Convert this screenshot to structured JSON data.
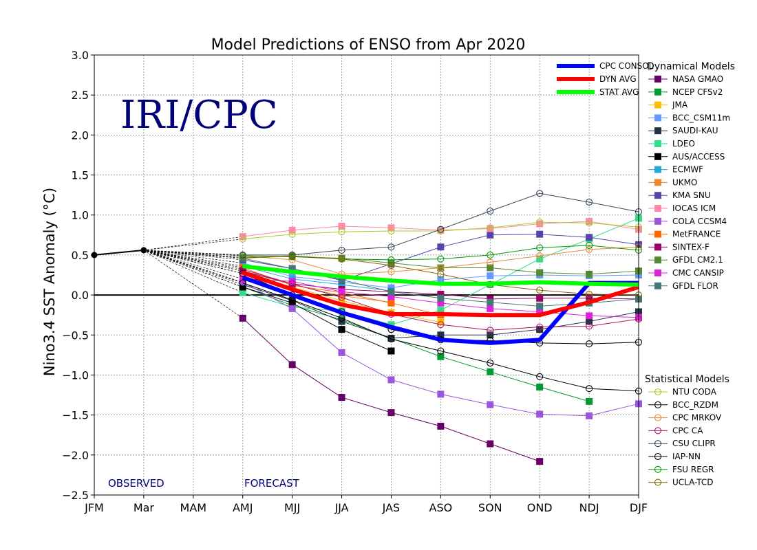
{
  "chart_data": {
    "type": "line",
    "title": "Model Predictions of ENSO from Apr 2020",
    "ylabel": "Nino3.4 SST Anomaly (°C)",
    "xlabel": "",
    "categories": [
      "JFM",
      "Mar",
      "MAM",
      "AMJ",
      "MJJ",
      "JJA",
      "JAS",
      "ASO",
      "SON",
      "OND",
      "NDJ",
      "DJF"
    ],
    "ylim": [
      -2.5,
      3.0
    ],
    "yticks": [
      -2.5,
      -2.0,
      -1.5,
      -1.0,
      -0.5,
      0.0,
      0.5,
      1.0,
      1.5,
      2.0,
      2.5,
      3.0
    ],
    "ytick_labels": [
      "−2.5",
      "−2.0",
      "−1.5",
      "−1.0",
      "−0.5",
      "0.0",
      "0.5",
      "1.0",
      "1.5",
      "2.0",
      "2.5",
      "3.0"
    ],
    "grid": true,
    "watermark": "IRI/CPC",
    "observed_label": "OBSERVED",
    "forecast_label": "FORECAST",
    "observed": {
      "x": [
        "JFM",
        "Mar"
      ],
      "values": [
        0.5,
        0.56
      ],
      "color": "#000000"
    },
    "averages": [
      {
        "name": "CPC CONSOL",
        "color": "#0000ff",
        "values": [
          null,
          null,
          null,
          0.22,
          0.0,
          -0.22,
          -0.4,
          -0.56,
          -0.6,
          -0.56,
          0.15,
          0.15
        ]
      },
      {
        "name": "DYN AVG",
        "color": "#ff0000",
        "values": [
          null,
          null,
          null,
          0.28,
          0.07,
          -0.12,
          -0.24,
          -0.24,
          -0.25,
          -0.25,
          -0.09,
          0.1
        ]
      },
      {
        "name": "STAT AVG",
        "color": "#00ff00",
        "values": [
          null,
          null,
          null,
          0.36,
          0.29,
          0.23,
          0.18,
          0.14,
          0.14,
          0.16,
          0.14,
          0.13
        ]
      }
    ],
    "legend_dynamical_title": "Dynamical Models",
    "legend_statistical_title": "Statistical Models",
    "dynamical": [
      {
        "name": "NASA GMAO",
        "color": "#660066",
        "values": [
          null,
          null,
          null,
          -0.29,
          -0.87,
          -1.28,
          -1.47,
          -1.64,
          -1.86,
          -2.08,
          null,
          null
        ]
      },
      {
        "name": "NCEP CFSv2",
        "color": "#009933",
        "values": [
          null,
          null,
          null,
          0.1,
          -0.13,
          -0.31,
          -0.54,
          -0.77,
          -0.96,
          -1.15,
          -1.33,
          null
        ]
      },
      {
        "name": "JMA",
        "color": "#ffbb00",
        "values": [
          null,
          null,
          null,
          0.27,
          0.1,
          -0.07,
          -0.22,
          -0.34,
          null,
          null,
          null,
          null
        ]
      },
      {
        "name": "BCC_CSM11m",
        "color": "#6699ff",
        "values": [
          null,
          null,
          null,
          0.4,
          0.23,
          0.16,
          0.09,
          0.19,
          0.24,
          0.25,
          0.24,
          0.25
        ]
      },
      {
        "name": "SAUDI-KAU",
        "color": "#223344",
        "values": [
          null,
          null,
          null,
          0.13,
          -0.07,
          -0.33,
          -0.54,
          -0.5,
          -0.5,
          -0.43,
          -0.33,
          -0.21
        ]
      },
      {
        "name": "LDEO",
        "color": "#33dd88",
        "values": [
          null,
          null,
          null,
          0.03,
          -0.15,
          -0.2,
          -0.37,
          -0.19,
          0.13,
          0.45,
          0.7,
          0.96
        ]
      },
      {
        "name": "AUS/ACCESS",
        "color": "#000000",
        "values": [
          null,
          null,
          null,
          0.1,
          -0.1,
          -0.43,
          -0.7,
          null,
          null,
          null,
          null,
          null
        ]
      },
      {
        "name": "ECMWF",
        "color": "#22aadd",
        "values": [
          null,
          null,
          null,
          0.36,
          0.2,
          0.13,
          0.05,
          null,
          null,
          null,
          null,
          null
        ]
      },
      {
        "name": "UKMO",
        "color": "#ee8833",
        "values": [
          null,
          null,
          null,
          0.3,
          0.13,
          -0.01,
          -0.09,
          null,
          null,
          null,
          null,
          null
        ]
      },
      {
        "name": "KMA SNU",
        "color": "#5544aa",
        "values": [
          null,
          null,
          null,
          0.44,
          0.33,
          0.18,
          0.39,
          0.6,
          0.75,
          0.76,
          0.72,
          0.63
        ]
      },
      {
        "name": "IOCAS ICM",
        "color": "#ff88aa",
        "values": [
          null,
          null,
          null,
          0.73,
          0.81,
          0.86,
          0.84,
          0.81,
          0.83,
          0.89,
          0.92,
          0.82
        ]
      },
      {
        "name": "COLA CCSM4",
        "color": "#9955dd",
        "values": [
          null,
          null,
          null,
          0.16,
          -0.17,
          -0.72,
          -1.06,
          -1.24,
          -1.37,
          -1.49,
          -1.51,
          -1.36
        ]
      },
      {
        "name": "MetFRANCE",
        "color": "#ff6600",
        "values": [
          null,
          null,
          null,
          0.34,
          0.12,
          0.03,
          -0.1,
          -0.25,
          null,
          null,
          null,
          null
        ]
      },
      {
        "name": "SINTEX-F",
        "color": "#990066",
        "values": [
          null,
          null,
          null,
          0.3,
          0.14,
          0.07,
          0.04,
          0.01,
          -0.05,
          -0.04,
          -0.04,
          -0.05
        ]
      },
      {
        "name": "GFDL CM2.1",
        "color": "#558833",
        "values": [
          null,
          null,
          null,
          0.47,
          0.48,
          0.46,
          0.4,
          0.34,
          0.34,
          0.28,
          0.26,
          0.3
        ]
      },
      {
        "name": "CMC CANSIP",
        "color": "#dd22dd",
        "values": [
          null,
          null,
          null,
          0.2,
          0.17,
          0.04,
          -0.02,
          -0.1,
          -0.17,
          -0.21,
          -0.26,
          -0.28
        ]
      },
      {
        "name": "GFDL FLOR",
        "color": "#447777",
        "values": [
          null,
          null,
          null,
          0.46,
          0.33,
          0.19,
          0.04,
          -0.04,
          -0.09,
          -0.14,
          -0.1,
          -0.05
        ]
      }
    ],
    "statistical": [
      {
        "name": "NTU CODA",
        "color": "#aacc22",
        "values": [
          null,
          null,
          null,
          0.7,
          0.76,
          0.79,
          0.8,
          0.8,
          0.84,
          0.91,
          0.9,
          0.85
        ]
      },
      {
        "name": "BCC_RZDM",
        "color": "#000000",
        "values": [
          null,
          null,
          null,
          0.15,
          -0.06,
          -0.29,
          -0.55,
          -0.7,
          -0.85,
          -1.02,
          -1.17,
          -1.2
        ]
      },
      {
        "name": "CPC MRKOV",
        "color": "#ee8833",
        "values": [
          null,
          null,
          null,
          0.49,
          0.44,
          0.26,
          0.29,
          0.34,
          0.41,
          0.49,
          0.57,
          0.6
        ]
      },
      {
        "name": "CPC CA",
        "color": "#aa1166",
        "values": [
          null,
          null,
          null,
          0.32,
          0.14,
          -0.03,
          -0.24,
          -0.37,
          -0.44,
          -0.4,
          -0.39,
          -0.3
        ]
      },
      {
        "name": "CSU CLIPR",
        "color": "#334455",
        "values": [
          null,
          null,
          null,
          0.5,
          0.5,
          0.56,
          0.6,
          0.82,
          1.05,
          1.27,
          1.16,
          1.04
        ]
      },
      {
        "name": "IAP-NN",
        "color": "#000000",
        "values": [
          null,
          null,
          null,
          0.27,
          0.0,
          -0.21,
          -0.43,
          -0.56,
          -0.57,
          -0.6,
          -0.61,
          -0.59
        ]
      },
      {
        "name": "FSU REGR",
        "color": "#009900",
        "values": [
          null,
          null,
          null,
          0.49,
          0.48,
          0.45,
          0.44,
          0.45,
          0.5,
          0.59,
          0.62,
          0.56
        ]
      },
      {
        "name": "UCLA-TCD",
        "color": "#886600",
        "values": [
          null,
          null,
          null,
          0.46,
          0.49,
          0.45,
          0.37,
          0.26,
          0.13,
          0.06,
          0.01,
          0.0
        ]
      }
    ]
  }
}
